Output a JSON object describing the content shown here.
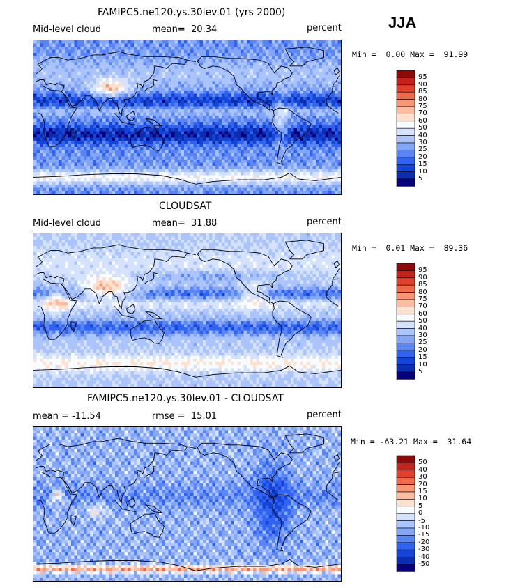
{
  "season": "JJA",
  "colors": {
    "panel_scale": [
      "#08007a",
      "#0b2db0",
      "#1545d8",
      "#2f63f0",
      "#5a86f5",
      "#84a6f7",
      "#abc4fb",
      "#d4e2fd",
      "#f8fbff",
      "#fde1cf",
      "#fbbc9f",
      "#f89676",
      "#ef6a4b",
      "#e1412c",
      "#c5221b",
      "#8c0a0a"
    ],
    "diff_scale": [
      "#08007a",
      "#0b2db0",
      "#1545d8",
      "#2f63f0",
      "#5a86f5",
      "#84a6f7",
      "#abc4fb",
      "#d4e2fd",
      "#f8fbff",
      "#fde1cf",
      "#fbbc9f",
      "#f89676",
      "#ef6a4b",
      "#e1412c",
      "#c5221b",
      "#8c0a0a"
    ]
  },
  "chart_data": [
    {
      "type": "heatmap",
      "title": "FAMIPC5.ne120.ys.30lev.01 (yrs 2000)",
      "variable": "Mid-level cloud",
      "mean_label": "mean=",
      "mean": "20.34",
      "units": "percent",
      "min_label": "Min =",
      "min": "0.00",
      "max_label": "Max =",
      "max": "91.99",
      "colorbar_levels": [
        "95",
        "90",
        "85",
        "80",
        "75",
        "70",
        "60",
        "50",
        "40",
        "30",
        "25",
        "20",
        "15",
        "10",
        "5"
      ]
    },
    {
      "type": "heatmap",
      "title": "CLOUDSAT",
      "variable": "Mid-level cloud",
      "mean_label": "mean=",
      "mean": "31.88",
      "units": "percent",
      "min_label": "Min =",
      "min": "0.01",
      "max_label": "Max =",
      "max": "89.36",
      "colorbar_levels": [
        "95",
        "90",
        "85",
        "80",
        "75",
        "70",
        "60",
        "50",
        "40",
        "30",
        "25",
        "20",
        "15",
        "10",
        "5"
      ]
    },
    {
      "type": "heatmap",
      "title": "FAMIPC5.ne120.ys.30lev.01 - CLOUDSAT",
      "mean_label": "mean =",
      "mean": "-11.54",
      "rmse_label": "rmse =",
      "rmse": "15.01",
      "units": "percent",
      "min_label": "Min =",
      "min": "-63.21",
      "max_label": "Max =",
      "max": "31.64",
      "colorbar_levels": [
        "50",
        "40",
        "30",
        "20",
        "15",
        "10",
        "5",
        "0",
        "-5",
        "-10",
        "-15",
        "-20",
        "-30",
        "-40",
        "-50"
      ]
    }
  ]
}
